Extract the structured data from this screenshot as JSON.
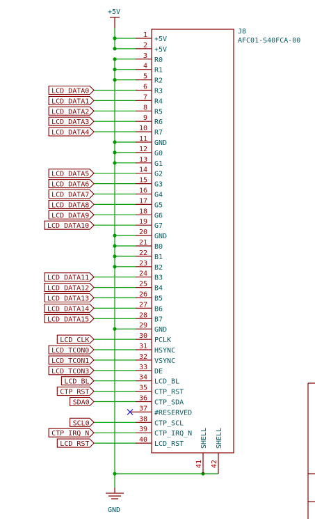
{
  "component": {
    "ref": "J8",
    "value": "AFC01-S40FCA-00"
  },
  "power": {
    "top": "+5V",
    "bottom": "GND"
  },
  "pins": [
    {
      "num": "1",
      "name": "+5V",
      "net": "+5V"
    },
    {
      "num": "2",
      "name": "+5V",
      "net": "+5V"
    },
    {
      "num": "3",
      "name": "R0",
      "net": "GND"
    },
    {
      "num": "4",
      "name": "R1",
      "net": "GND"
    },
    {
      "num": "5",
      "name": "R2",
      "net": "GND"
    },
    {
      "num": "6",
      "name": "R3",
      "label": "LCD_DATA0"
    },
    {
      "num": "7",
      "name": "R4",
      "label": "LCD_DATA1"
    },
    {
      "num": "8",
      "name": "R5",
      "label": "LCD_DATA2"
    },
    {
      "num": "9",
      "name": "R6",
      "label": "LCD_DATA3"
    },
    {
      "num": "10",
      "name": "R7",
      "label": "LCD_DATA4"
    },
    {
      "num": "11",
      "name": "GND",
      "net": "GND"
    },
    {
      "num": "12",
      "name": "G0",
      "net": "GND"
    },
    {
      "num": "13",
      "name": "G1",
      "net": "GND"
    },
    {
      "num": "14",
      "name": "G2",
      "label": "LCD_DATA5"
    },
    {
      "num": "15",
      "name": "G3",
      "label": "LCD_DATA6"
    },
    {
      "num": "16",
      "name": "G4",
      "label": "LCD_DATA7"
    },
    {
      "num": "17",
      "name": "G5",
      "label": "LCD_DATA8"
    },
    {
      "num": "18",
      "name": "G6",
      "label": "LCD_DATA9"
    },
    {
      "num": "19",
      "name": "G7",
      "label": "LCD_DATA10"
    },
    {
      "num": "20",
      "name": "GND",
      "net": "GND"
    },
    {
      "num": "21",
      "name": "B0",
      "net": "GND"
    },
    {
      "num": "22",
      "name": "B1",
      "net": "GND"
    },
    {
      "num": "23",
      "name": "B2",
      "net": "GND"
    },
    {
      "num": "24",
      "name": "B3",
      "label": "LCD_DATA11"
    },
    {
      "num": "25",
      "name": "B4",
      "label": "LCD_DATA12"
    },
    {
      "num": "26",
      "name": "B5",
      "label": "LCD_DATA13"
    },
    {
      "num": "27",
      "name": "B6",
      "label": "LCD_DATA14"
    },
    {
      "num": "28",
      "name": "B7",
      "label": "LCD_DATA15"
    },
    {
      "num": "29",
      "name": "GND",
      "net": "GND"
    },
    {
      "num": "30",
      "name": "PCLK",
      "label": "LCD_CLK"
    },
    {
      "num": "31",
      "name": "HSYNC",
      "label": "LCD_TCON0"
    },
    {
      "num": "32",
      "name": "VSYNC",
      "label": "LCD_TCON1"
    },
    {
      "num": "33",
      "name": "DE",
      "label": "LCD_TCON3"
    },
    {
      "num": "34",
      "name": "LCD_BL",
      "label": "LCD_BL"
    },
    {
      "num": "35",
      "name": "CTP_RST",
      "label": "CTP_RST"
    },
    {
      "num": "36",
      "name": "CTP_SDA",
      "label": "SDA0"
    },
    {
      "num": "37",
      "name": "#RESERVED",
      "nc": true
    },
    {
      "num": "38",
      "name": "CTP_SCL",
      "label": "SCL0"
    },
    {
      "num": "39",
      "name": "CTP_IRQ_N",
      "label": "CTP_IRQ_N"
    },
    {
      "num": "40",
      "name": "LCD_RST",
      "label": "LCD_RST"
    }
  ],
  "shell_pins": [
    {
      "num": "41",
      "name": "SHELL"
    },
    {
      "num": "42",
      "name": "SHELL"
    }
  ]
}
